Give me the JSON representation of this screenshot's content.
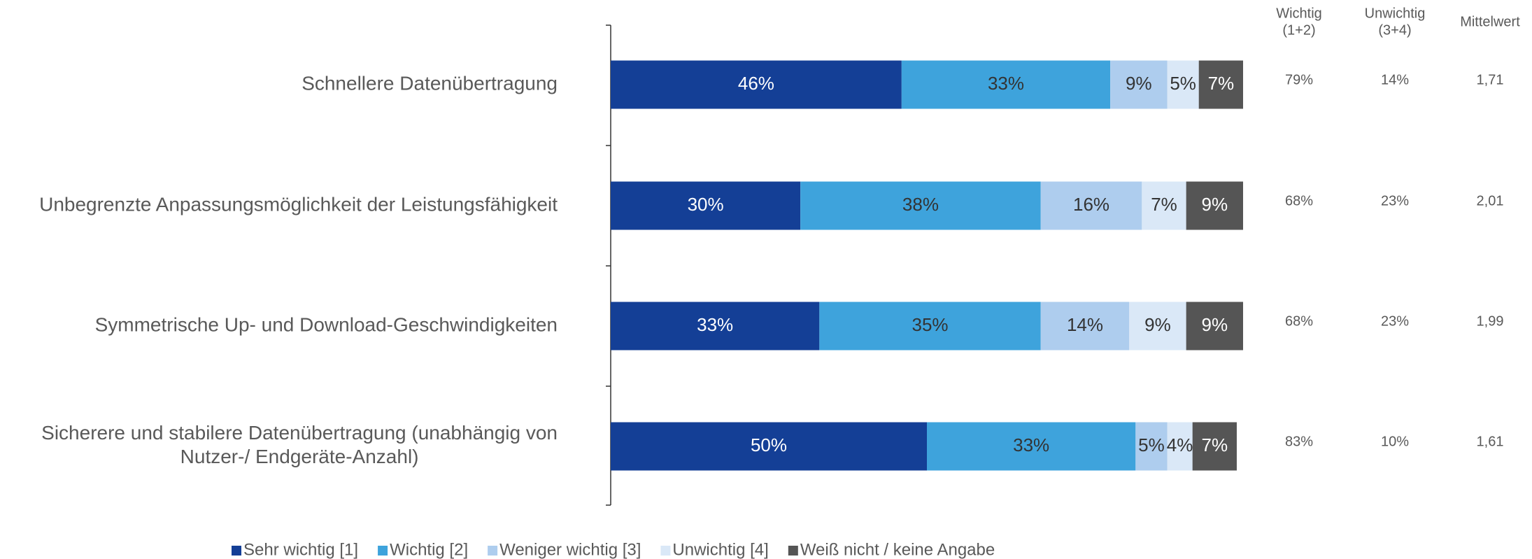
{
  "chart_data": {
    "type": "stacked-bar-horizontal",
    "categories": [
      "Schnellere Datenübertragung",
      "Unbegrenzte Anpassungsmöglichkeit der Leistungsfähigkeit",
      "Symmetrische Up- und Download-Geschwindigkeiten",
      "Sicherere und stabilere Datenübertragung (unabhängig von\nNutzer-/  Endgeräte-Anzahl)"
    ],
    "xlim": [
      0,
      100
    ],
    "series": [
      {
        "name": "Sehr wichtig [1]",
        "color": "#143f96",
        "text_color": "#ffffff",
        "values": [
          46,
          30,
          33,
          50
        ],
        "value_labels": [
          "46%",
          "30%",
          "33%",
          "50%"
        ]
      },
      {
        "name": "Wichtig [2]",
        "color": "#3ea3dc",
        "text_color": "#333333",
        "values": [
          33,
          38,
          35,
          33
        ],
        "value_labels": [
          "33%",
          "38%",
          "35%",
          "33%"
        ]
      },
      {
        "name": "Weniger wichtig [3]",
        "color": "#aecdee",
        "text_color": "#333333",
        "values": [
          9,
          16,
          14,
          5
        ],
        "value_labels": [
          "9%",
          "16%",
          "14%",
          "5%"
        ]
      },
      {
        "name": "Unwichtig [4]",
        "color": "#dae8f7",
        "text_color": "#333333",
        "values": [
          5,
          7,
          9,
          4
        ],
        "value_labels": [
          "5%",
          "7%",
          "9%",
          "4%"
        ]
      },
      {
        "name": "Weiß nicht / keine Angabe",
        "color": "#555555",
        "text_color": "#ffffff",
        "values": [
          7,
          9,
          9,
          7
        ],
        "value_labels": [
          "7%",
          "9%",
          "9%",
          "7%"
        ]
      }
    ],
    "summary": [
      {
        "header": [
          "Wichtig",
          "(1+2)"
        ],
        "values": [
          "79%",
          "68%",
          "68%",
          "83%"
        ]
      },
      {
        "header": [
          "Unwichtig",
          "(3+4)"
        ],
        "values": [
          "14%",
          "23%",
          "23%",
          "10%"
        ]
      },
      {
        "header": [
          "Mittelwert"
        ],
        "values": [
          "1,71",
          "2,01",
          "1,99",
          "1,61"
        ]
      }
    ],
    "legend": "bottom"
  }
}
